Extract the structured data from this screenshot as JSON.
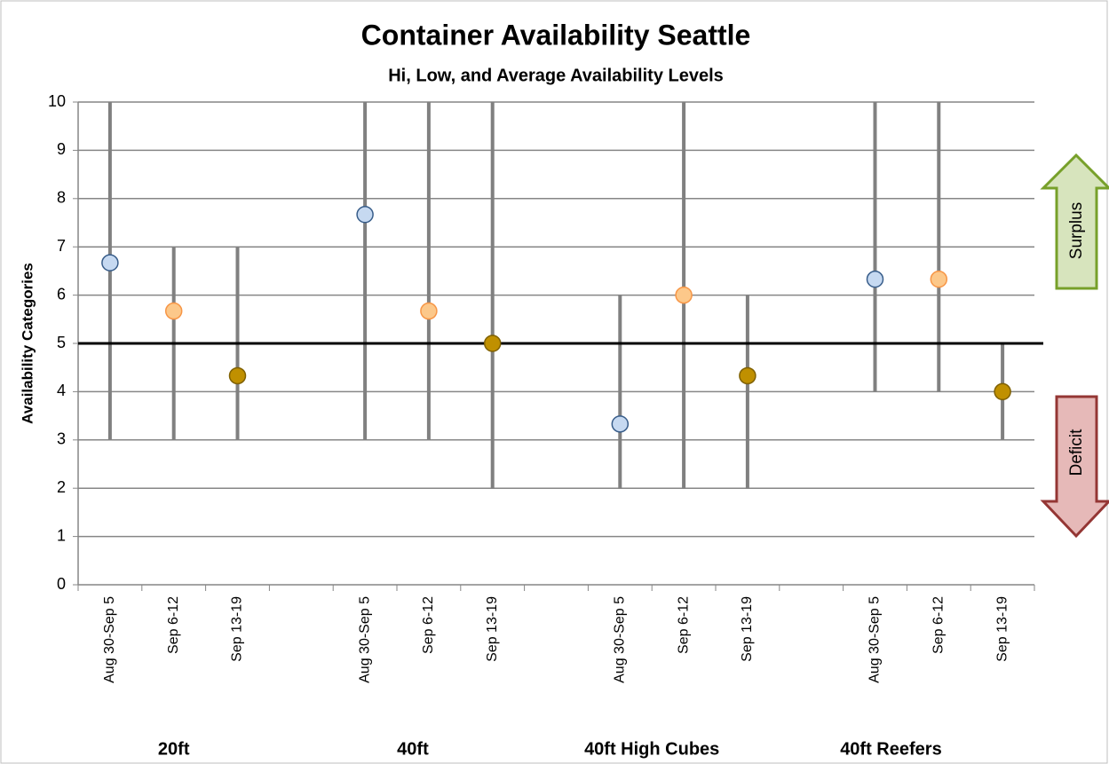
{
  "chart_data": {
    "type": "hilo",
    "title": "Container Availability Seattle",
    "subtitle": "Hi, Low, and Average Availability Levels",
    "y_label": "Availability Categories",
    "categories": [
      "Aug 30-Sep 5",
      "Sep 6-12",
      "Sep 13-19",
      null,
      "Aug 30-Sep 5",
      "Sep 6-12",
      "Sep 13-19",
      null,
      "Aug 30-Sep 5",
      "Sep 6-12",
      "Sep 13-19",
      null,
      "Aug 30-Sep 5",
      "Sep 6-12",
      "Sep 13-19"
    ],
    "group_labels": [
      "20ft",
      "40ft",
      "40ft High Cubes",
      "40ft Reefers"
    ],
    "high": [
      10,
      7,
      7,
      null,
      10,
      10,
      10,
      null,
      6,
      10,
      6,
      null,
      10,
      10,
      5
    ],
    "low": [
      3,
      3,
      3,
      null,
      3,
      3,
      2,
      null,
      2,
      2,
      2,
      null,
      4,
      4,
      3
    ],
    "average": [
      6.67,
      5.67,
      4.33,
      null,
      7.67,
      5.67,
      5,
      null,
      3.33,
      6,
      4.33,
      null,
      6.33,
      6.33,
      4
    ],
    "marker_colors": [
      "#c6d9f1",
      "#fcc88a",
      "#c09000"
    ],
    "marker_edge_colors": [
      "#385d8a",
      "#f79646",
      "#7f6000"
    ],
    "line_color": "#808080",
    "reference_line": 5,
    "ylim": [
      0,
      10
    ],
    "yticks": [
      0,
      1,
      2,
      3,
      4,
      5,
      6,
      7,
      8,
      9,
      10
    ],
    "grid": true,
    "annotations": [
      "Surplus",
      "Deficit"
    ]
  }
}
